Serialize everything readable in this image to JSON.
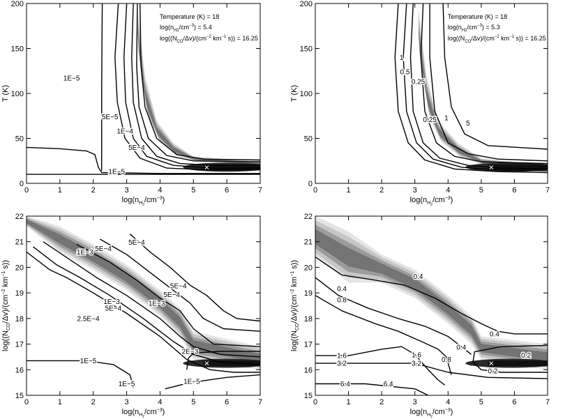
{
  "chart_data": [
    {
      "type": "heatmap",
      "panel": "top-left",
      "xlabel": "log(n_H2/cm^-3)",
      "ylabel": "T (K)",
      "xlim": [
        0,
        7
      ],
      "ylim": [
        0,
        200
      ],
      "xticks": [
        "0",
        "1",
        "2",
        "3",
        "4",
        "5",
        "6",
        "7"
      ],
      "yticks": [
        "0",
        "50",
        "100",
        "150",
        "200"
      ],
      "annotations": [
        "Temperature (K) = 18",
        "log(n_H2/cm^-3) = 5.4",
        "log((N_CO/Δv)/(cm^-2 km^-1 s)) = 16.25"
      ],
      "best_fit": {
        "x": 5.4,
        "y": 18,
        "marker": "×"
      },
      "contour_labels": [
        {
          "text": "1E−5",
          "x": 1.35,
          "y": 117
        },
        {
          "text": "5E−5",
          "x": 2.5,
          "y": 74
        },
        {
          "text": "1E−4",
          "x": 2.95,
          "y": 58
        },
        {
          "text": "5E−4",
          "x": 3.3,
          "y": 40
        },
        {
          "text": "1E−5",
          "x": 2.7,
          "y": 13
        }
      ],
      "contours": [
        {
          "x": [
            0,
            1.0,
            1.8,
            2.05,
            2.1,
            2.15,
            2.25,
            4.0,
            7.0
          ],
          "y": [
            40,
            38.5,
            36,
            32,
            25,
            18,
            12,
            11,
            11
          ]
        },
        {
          "x": [
            0,
            3.0,
            7.0
          ],
          "y": [
            10,
            10,
            10
          ]
        },
        {
          "x": [
            2.25,
            2.25,
            2.26,
            2.27
          ],
          "y": [
            14,
            100,
            160,
            200
          ]
        },
        {
          "x": [
            2.75,
            2.65,
            2.72,
            2.95,
            3.4,
            4.2,
            5.5,
            7.0
          ],
          "y": [
            200,
            140,
            90,
            50,
            28,
            17,
            15,
            15
          ]
        },
        {
          "x": [
            3.0,
            2.92,
            2.97,
            3.2,
            3.6,
            4.4,
            5.5,
            7.0
          ],
          "y": [
            200,
            140,
            90,
            50,
            30,
            20,
            17,
            17
          ]
        },
        {
          "x": [
            3.2,
            3.15,
            3.2,
            3.45,
            3.9,
            4.6,
            5.6,
            7.0
          ],
          "y": [
            200,
            140,
            90,
            50,
            30,
            22,
            20,
            20
          ]
        },
        {
          "x": [
            3.32,
            3.3,
            3.37,
            3.65,
            4.2,
            5.0,
            7.0
          ],
          "y": [
            200,
            130,
            85,
            50,
            31,
            25,
            24
          ]
        },
        {
          "x": [
            3.4,
            3.43,
            3.55,
            3.9,
            4.5,
            5.3,
            7.0
          ],
          "y": [
            200,
            130,
            85,
            50,
            32,
            27,
            26
          ]
        }
      ],
      "heat_band": [
        {
          "x": 3.32,
          "t": [
            200,
            120
          ]
        },
        {
          "x": 3.55,
          "t": [
            120,
            70
          ]
        },
        {
          "x": 3.9,
          "t": [
            70,
            45
          ]
        },
        {
          "x": 4.4,
          "t": [
            45,
            30
          ]
        },
        {
          "x": 5.0,
          "t": [
            30,
            24
          ]
        },
        {
          "x": 7.0,
          "t": [
            24,
            20
          ]
        }
      ]
    },
    {
      "type": "heatmap",
      "panel": "top-right",
      "xlabel": "log(n_H2/cm^-3)",
      "ylabel": "T (K)",
      "xlim": [
        0,
        7
      ],
      "ylim": [
        0,
        200
      ],
      "xticks": [
        "0",
        "1",
        "2",
        "3",
        "4",
        "5",
        "6",
        "7"
      ],
      "yticks": [
        "0",
        "50",
        "100",
        "150",
        "200"
      ],
      "annotations": [
        "Temperature (K) = 18",
        "log(n_H2/cm^-3) = 5.3",
        "log((N_CO/Δv)/(cm^-2 km^-1 s)) = 16.25"
      ],
      "best_fit": {
        "x": 5.3,
        "y": 18,
        "marker": "×"
      },
      "contour_labels": [
        {
          "text": "1",
          "x": 2.6,
          "y": 140
        },
        {
          "text": "0.5",
          "x": 2.7,
          "y": 124
        },
        {
          "text": "0.25",
          "x": 3.1,
          "y": 113
        },
        {
          "text": "0.25",
          "x": 3.45,
          "y": 71
        },
        {
          "text": "1",
          "x": 3.95,
          "y": 73
        },
        {
          "text": "5",
          "x": 4.6,
          "y": 67
        }
      ],
      "contours": [
        {
          "x": [
            2.5,
            2.4,
            2.5,
            2.8,
            3.3,
            4.2,
            5.5,
            7.0
          ],
          "y": [
            200,
            140,
            80,
            45,
            26,
            16,
            13,
            12
          ]
        },
        {
          "x": [
            2.75,
            2.65,
            2.75,
            3.05,
            3.55,
            4.4,
            5.5,
            7.0
          ],
          "y": [
            200,
            140,
            80,
            45,
            27,
            18,
            15,
            14
          ]
        },
        {
          "x": [
            2.95,
            2.87,
            2.95,
            3.25,
            3.75,
            4.6,
            5.6,
            7.0
          ],
          "y": [
            200,
            140,
            80,
            45,
            28,
            20,
            17,
            16
          ]
        },
        {
          "x": [
            3.25,
            3.18,
            3.3,
            3.65,
            4.2,
            5.0,
            7.0
          ],
          "y": [
            200,
            140,
            80,
            45,
            30,
            24,
            22
          ]
        },
        {
          "x": [
            3.45,
            3.45,
            3.6,
            4.0,
            4.6,
            5.5,
            7.0
          ],
          "y": [
            200,
            140,
            80,
            45,
            33,
            27,
            25
          ]
        },
        {
          "x": [
            3.85,
            3.9,
            4.1,
            4.5,
            5.2,
            7.0
          ],
          "y": [
            200,
            140,
            85,
            55,
            42,
            38
          ]
        }
      ],
      "heat_band": [
        {
          "x": 3.1,
          "t": [
            200,
            120
          ]
        },
        {
          "x": 3.35,
          "t": [
            120,
            70
          ]
        },
        {
          "x": 3.7,
          "t": [
            70,
            45
          ]
        },
        {
          "x": 4.3,
          "t": [
            45,
            28
          ]
        },
        {
          "x": 5.0,
          "t": [
            28,
            20
          ]
        },
        {
          "x": 7.0,
          "t": [
            20,
            17
          ]
        }
      ]
    },
    {
      "type": "heatmap",
      "panel": "bottom-left",
      "xlabel": "log(n_H2/cm^-3)",
      "ylabel": "log((N_CO/Δv)/(cm^-2 km^-1 s))",
      "xlim": [
        0,
        7
      ],
      "ylim": [
        15,
        22
      ],
      "xticks": [
        "0",
        "1",
        "2",
        "3",
        "4",
        "5",
        "6",
        "7"
      ],
      "yticks": [
        "15",
        "16",
        "17",
        "18",
        "19",
        "20",
        "21",
        "22"
      ],
      "best_fit": {
        "x": 5.4,
        "y": 16.25,
        "marker": "×"
      },
      "contour_labels": [
        {
          "text": "1E−3",
          "x": 1.75,
          "y": 20.6
        },
        {
          "text": "5E−4",
          "x": 2.3,
          "y": 20.73
        },
        {
          "text": "5E−4",
          "x": 3.3,
          "y": 20.98
        },
        {
          "text": "5E−4",
          "x": 4.55,
          "y": 19.28
        },
        {
          "text": "5E−4",
          "x": 4.35,
          "y": 18.93
        },
        {
          "text": "1E−3",
          "x": 3.9,
          "y": 18.6
        },
        {
          "text": "1E−3",
          "x": 2.55,
          "y": 18.67
        },
        {
          "text": "5E−4",
          "x": 2.6,
          "y": 18.4
        },
        {
          "text": "2.5E−4",
          "x": 1.85,
          "y": 18.0
        },
        {
          "text": "2E−3",
          "x": 4.9,
          "y": 16.72
        },
        {
          "text": "1E−5",
          "x": 1.85,
          "y": 16.35
        },
        {
          "text": "1E−5",
          "x": 3.0,
          "y": 15.45
        },
        {
          "text": "1E−5",
          "x": 4.95,
          "y": 15.55
        }
      ],
      "contours": [
        {
          "x": [
            0,
            0.7,
            1.2,
            2.0,
            3.0,
            4.0,
            4.8,
            5.5,
            6.2,
            7.0
          ],
          "y": [
            20.6,
            19.9,
            19.6,
            19.0,
            18.2,
            17.3,
            16.4,
            16.0,
            15.9,
            15.9
          ]
        },
        {
          "x": [
            0.2,
            0.9,
            1.6,
            2.5,
            3.5,
            4.4,
            5.0,
            5.8,
            7.0
          ],
          "y": [
            20.8,
            20.1,
            19.6,
            18.9,
            18.0,
            17.1,
            16.6,
            16.3,
            16.2
          ]
        },
        {
          "x": [
            0.5,
            1.3,
            2.1,
            3.0,
            4.0,
            4.6,
            5.0,
            5.8,
            7.0
          ],
          "y": [
            21.0,
            20.3,
            19.6,
            18.9,
            18.0,
            17.3,
            16.9,
            16.6,
            16.5
          ]
        },
        {
          "x": [
            1.5,
            2.5,
            3.3,
            4.0,
            4.6,
            5.0,
            5.6,
            7.0
          ],
          "y": [
            20.9,
            20.2,
            19.5,
            18.8,
            18.3,
            17.6,
            17.0,
            16.9
          ]
        },
        {
          "x": [
            2.2,
            3.0,
            3.7,
            4.3,
            4.9,
            5.3,
            5.9,
            7.0
          ],
          "y": [
            21.1,
            20.5,
            19.8,
            19.2,
            18.6,
            18.0,
            17.6,
            17.5
          ]
        },
        {
          "x": [
            3.1,
            3.7,
            4.3,
            4.9,
            5.4,
            5.9,
            6.3,
            7.0
          ],
          "y": [
            21.3,
            20.6,
            20.0,
            19.3,
            18.9,
            18.3,
            18.0,
            17.9
          ]
        },
        {
          "x": [
            4.8,
            4.85,
            5.0,
            5.8,
            7.0
          ],
          "y": [
            16.0,
            16.45,
            16.65,
            16.72,
            16.72
          ]
        },
        {
          "x": [
            0,
            1.2,
            1.8,
            2.6,
            3.1,
            3.2
          ],
          "y": [
            16.35,
            16.35,
            16.35,
            16.2,
            15.8,
            15.3
          ]
        },
        {
          "x": [
            4.15,
            4.6,
            5.2,
            6.0,
            7.0
          ],
          "y": [
            15.25,
            15.4,
            15.55,
            15.7,
            15.8
          ]
        }
      ],
      "heat_band": [
        {
          "x": 0.0,
          "c": [
            21.6,
            22.0
          ]
        },
        {
          "x": 1.0,
          "c": [
            20.6,
            21.6
          ]
        },
        {
          "x": 2.0,
          "c": [
            19.9,
            20.9
          ]
        },
        {
          "x": 3.0,
          "c": [
            19.1,
            20.1
          ]
        },
        {
          "x": 4.0,
          "c": [
            18.1,
            19.1
          ]
        },
        {
          "x": 4.6,
          "c": [
            17.3,
            18.4
          ]
        },
        {
          "x": 5.0,
          "c": [
            16.4,
            17.5
          ]
        },
        {
          "x": 7.0,
          "c": [
            16.0,
            16.9
          ]
        }
      ]
    },
    {
      "type": "heatmap",
      "panel": "bottom-right",
      "xlabel": "log(n_H2/cm^-3)",
      "ylabel": "log((N_CO/Δv)/(cm^-2 km^-1 s))",
      "xlim": [
        0,
        7
      ],
      "ylim": [
        15,
        22
      ],
      "xticks": [
        "0",
        "1",
        "2",
        "3",
        "4",
        "5",
        "6",
        "7"
      ],
      "yticks": [
        "15",
        "16",
        "17",
        "18",
        "19",
        "20",
        "21",
        "22"
      ],
      "best_fit": {
        "x": 5.3,
        "y": 16.25,
        "marker": "×"
      },
      "contour_labels": [
        {
          "text": "0.4",
          "x": 3.1,
          "y": 19.65
        },
        {
          "text": "0.4",
          "x": 0.8,
          "y": 19.17
        },
        {
          "text": "0.8",
          "x": 0.8,
          "y": 18.73
        },
        {
          "text": "0.4",
          "x": 5.4,
          "y": 17.4
        },
        {
          "text": "0.4",
          "x": 4.4,
          "y": 16.88
        },
        {
          "text": "0.2",
          "x": 6.35,
          "y": 16.56
        },
        {
          "text": "0.2",
          "x": 5.35,
          "y": 15.95
        },
        {
          "text": "0.8",
          "x": 3.95,
          "y": 16.4
        },
        {
          "text": "1.6",
          "x": 0.8,
          "y": 16.55
        },
        {
          "text": "1.6",
          "x": 3.05,
          "y": 16.58
        },
        {
          "text": "3.2",
          "x": 0.8,
          "y": 16.25
        },
        {
          "text": "3.2",
          "x": 3.05,
          "y": 16.25
        },
        {
          "text": "6.4",
          "x": 0.9,
          "y": 15.45
        },
        {
          "text": "6.4",
          "x": 2.2,
          "y": 15.45
        }
      ],
      "contours": [
        {
          "x": [
            0,
            0.8,
            1.8,
            2.7,
            3.6,
            4.4,
            5.0,
            5.5,
            6.0,
            7.0
          ],
          "y": [
            20.4,
            19.7,
            19.5,
            19.3,
            18.8,
            18.2,
            17.8,
            17.5,
            17.4,
            17.4
          ]
        },
        {
          "x": [
            0,
            0.7,
            1.6,
            2.5,
            3.3,
            4.0,
            4.4,
            4.7
          ],
          "y": [
            19.6,
            18.9,
            18.4,
            18.0,
            17.7,
            17.3,
            16.9,
            16.6
          ]
        },
        {
          "x": [
            0,
            0.8,
            1.8,
            2.5,
            3.2,
            3.7,
            3.95,
            4.1
          ],
          "y": [
            18.9,
            18.3,
            17.8,
            17.5,
            17.1,
            16.8,
            16.5,
            15.8
          ]
        },
        {
          "x": [
            0,
            1.0,
            2.0,
            2.6,
            3.0,
            3.4,
            3.7,
            3.9
          ],
          "y": [
            16.55,
            16.55,
            16.8,
            16.9,
            16.6,
            16.0,
            15.6,
            15.4
          ]
        },
        {
          "x": [
            0,
            3.0,
            4.0,
            5.2,
            7.0
          ],
          "y": [
            16.25,
            16.25,
            15.9,
            15.7,
            15.65
          ]
        },
        {
          "x": [
            0,
            1.5,
            3.0,
            3.4
          ],
          "y": [
            15.45,
            15.45,
            15.25,
            15.0
          ]
        },
        {
          "x": [
            7.0,
            5.6,
            4.8,
            4.75,
            5.0,
            5.6,
            7.0
          ],
          "y": [
            16.95,
            16.9,
            16.7,
            16.3,
            16.0,
            15.9,
            15.9
          ]
        }
      ],
      "heat_band": [
        {
          "x": 0.0,
          "c": [
            20.4,
            22.0
          ]
        },
        {
          "x": 1.0,
          "c": [
            19.4,
            21.4
          ]
        },
        {
          "x": 2.0,
          "c": [
            19.4,
            20.5
          ]
        },
        {
          "x": 3.0,
          "c": [
            18.8,
            19.9
          ]
        },
        {
          "x": 4.0,
          "c": [
            17.8,
            18.9
          ]
        },
        {
          "x": 4.7,
          "c": [
            17.0,
            18.1
          ]
        },
        {
          "x": 5.0,
          "c": [
            16.4,
            17.3
          ]
        },
        {
          "x": 7.0,
          "c": [
            16.0,
            17.0
          ]
        }
      ]
    }
  ]
}
